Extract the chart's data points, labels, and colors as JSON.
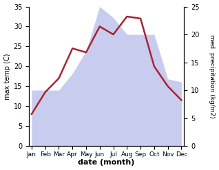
{
  "months": [
    "Jan",
    "Feb",
    "Mar",
    "Apr",
    "May",
    "Jun",
    "Jul",
    "Aug",
    "Sep",
    "Oct",
    "Nov",
    "Dec"
  ],
  "temperature": [
    8,
    13.5,
    17,
    24.5,
    23.5,
    30,
    28,
    32.5,
    32,
    20,
    15,
    11.5
  ],
  "precipitation": [
    10,
    10,
    10,
    13,
    17,
    25,
    23,
    20,
    20,
    20,
    12,
    11.5
  ],
  "temp_color": "#aa2233",
  "precip_fill_color": "#c8ccee",
  "xlabel": "date (month)",
  "ylabel_left": "max temp (C)",
  "ylabel_right": "med. precipitation (kg/m2)",
  "ylim_left": [
    0,
    35
  ],
  "ylim_right": [
    0,
    25
  ],
  "yticks_left": [
    0,
    5,
    10,
    15,
    20,
    25,
    30,
    35
  ],
  "yticks_right": [
    0,
    5,
    10,
    15,
    20,
    25
  ],
  "background_color": "#ffffff",
  "temp_linewidth": 1.8,
  "fig_width": 3.18,
  "fig_height": 2.47,
  "dpi": 100
}
